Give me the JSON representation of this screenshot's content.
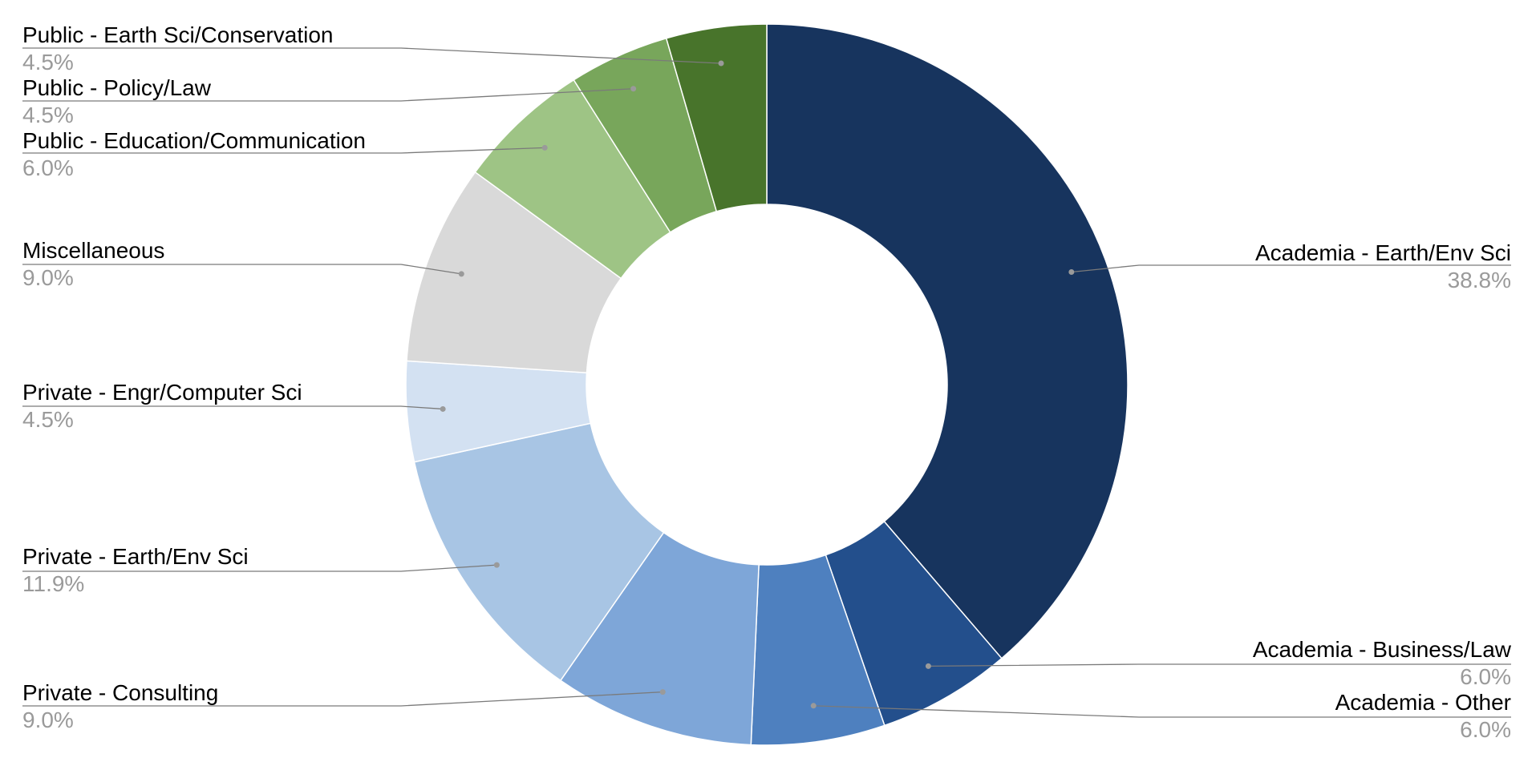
{
  "chart_data": {
    "type": "pie",
    "donut": true,
    "title": "",
    "legend": "none",
    "slices": [
      {
        "label": "Academia - Earth/Env Sci",
        "value": 38.8,
        "display": "38.8%",
        "color": "#17345e"
      },
      {
        "label": "Academia - Business/Law",
        "value": 6.0,
        "display": "6.0%",
        "color": "#234f8c"
      },
      {
        "label": "Academia - Other",
        "value": 6.0,
        "display": "6.0%",
        "color": "#4e80bf"
      },
      {
        "label": "Private - Consulting",
        "value": 9.0,
        "display": "9.0%",
        "color": "#7ea6d8"
      },
      {
        "label": "Private - Earth/Env Sci",
        "value": 11.9,
        "display": "11.9%",
        "color": "#a8c5e4"
      },
      {
        "label": "Private - Engr/Computer Sci",
        "value": 4.5,
        "display": "4.5%",
        "color": "#d3e1f2"
      },
      {
        "label": "Miscellaneous",
        "value": 9.0,
        "display": "9.0%",
        "color": "#d9d9d9"
      },
      {
        "label": "Public - Education/Communication",
        "value": 6.0,
        "display": "6.0%",
        "color": "#9ec485"
      },
      {
        "label": "Public - Policy/Law",
        "value": 4.5,
        "display": "4.5%",
        "color": "#78a65b"
      },
      {
        "label": "Public - Earth Sci/Conservation",
        "value": 4.5,
        "display": "4.5%",
        "color": "#48742b"
      }
    ]
  }
}
